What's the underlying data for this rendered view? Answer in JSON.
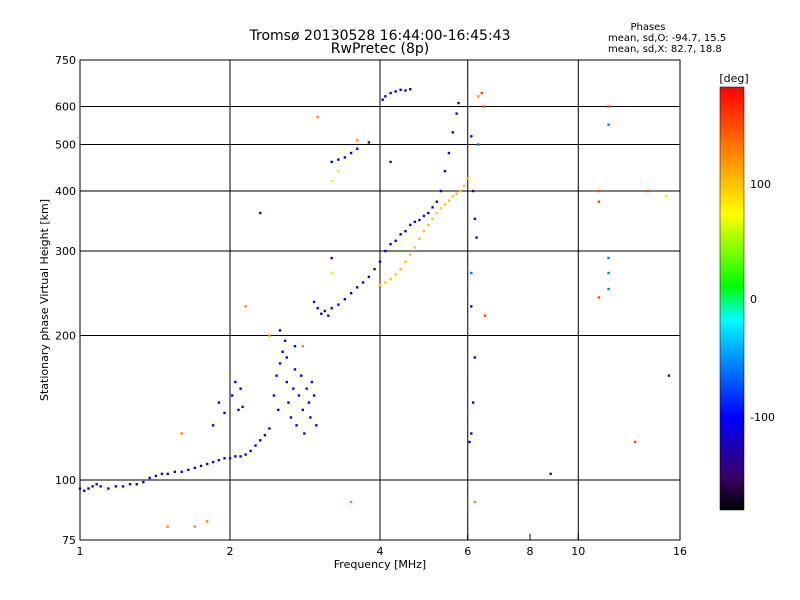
{
  "chart_data": {
    "type": "scatter",
    "title": "Tromsø 20130528 16:44:00-16:45:43",
    "subtitle": "RwPretec (8p)",
    "xlabel": "Frequency [MHz]",
    "ylabel": "Stationary phase Virtual Height [km]",
    "x_scale": "log",
    "y_scale": "log",
    "xlim": [
      1,
      16
    ],
    "ylim": [
      75,
      750
    ],
    "x_ticks": [
      "1",
      "2",
      "4",
      "6",
      "8",
      "10",
      "16"
    ],
    "y_ticks": [
      "750",
      "600",
      "500",
      "400",
      "300",
      "200",
      "100",
      "75"
    ],
    "grid_x": [
      2,
      4,
      6,
      10
    ],
    "grid_y": [
      100,
      200,
      300,
      400,
      500,
      600
    ],
    "stats": {
      "heading": "Phases",
      "line_o": "mean, sd,O: -94.7, 15.5",
      "line_x": "mean, sd,X: 82.7, 18.8"
    },
    "colorbar": {
      "label": "[deg]",
      "range": [
        -180,
        180
      ],
      "ticks": [
        "100",
        "0",
        "-100"
      ]
    },
    "series": [
      {
        "phase": -120,
        "points": [
          [
            1.0,
            96
          ],
          [
            1.02,
            95
          ],
          [
            1.04,
            96
          ],
          [
            1.06,
            97
          ],
          [
            1.08,
            98
          ],
          [
            1.1,
            97
          ],
          [
            1.14,
            96
          ],
          [
            1.18,
            97
          ],
          [
            1.22,
            97
          ],
          [
            1.26,
            98
          ],
          [
            1.3,
            98
          ],
          [
            1.34,
            99
          ],
          [
            1.38,
            101
          ],
          [
            1.42,
            102
          ],
          [
            1.46,
            103
          ],
          [
            1.5,
            103
          ],
          [
            1.55,
            104
          ],
          [
            1.6,
            104
          ],
          [
            1.65,
            105
          ],
          [
            1.7,
            106
          ],
          [
            1.75,
            107
          ],
          [
            1.8,
            108
          ],
          [
            1.85,
            109
          ],
          [
            1.9,
            110
          ],
          [
            1.95,
            111
          ],
          [
            2.0,
            111
          ],
          [
            2.05,
            112
          ],
          [
            2.1,
            112
          ],
          [
            2.15,
            113
          ],
          [
            2.2,
            115
          ],
          [
            2.25,
            118
          ],
          [
            2.3,
            121
          ],
          [
            2.35,
            124
          ],
          [
            2.4,
            128
          ]
        ]
      },
      {
        "phase": -110,
        "points": [
          [
            2.45,
            150
          ],
          [
            2.48,
            165
          ],
          [
            2.5,
            140
          ],
          [
            2.52,
            175
          ],
          [
            2.55,
            185
          ],
          [
            2.58,
            195
          ],
          [
            2.6,
            160
          ],
          [
            2.62,
            145
          ],
          [
            2.65,
            135
          ],
          [
            2.68,
            155
          ],
          [
            2.7,
            170
          ],
          [
            2.72,
            130
          ],
          [
            2.75,
            150
          ],
          [
            2.78,
            165
          ],
          [
            2.8,
            140
          ],
          [
            2.82,
            125
          ],
          [
            2.85,
            155
          ],
          [
            2.88,
            145
          ],
          [
            2.9,
            135
          ],
          [
            2.92,
            160
          ],
          [
            2.95,
            150
          ],
          [
            2.98,
            130
          ],
          [
            2.52,
            205
          ],
          [
            2.7,
            190
          ],
          [
            2.6,
            180
          ]
        ]
      },
      {
        "phase": -115,
        "points": [
          [
            1.85,
            130
          ],
          [
            1.9,
            145
          ],
          [
            1.95,
            138
          ],
          [
            2.02,
            150
          ],
          [
            2.05,
            160
          ],
          [
            2.08,
            140
          ],
          [
            2.1,
            155
          ],
          [
            2.12,
            142
          ]
        ]
      },
      {
        "phase": -120,
        "points": [
          [
            2.95,
            235
          ],
          [
            3.0,
            228
          ],
          [
            3.05,
            222
          ],
          [
            3.1,
            225
          ],
          [
            3.15,
            220
          ],
          [
            3.2,
            228
          ],
          [
            3.3,
            232
          ],
          [
            3.4,
            238
          ],
          [
            3.5,
            245
          ],
          [
            3.6,
            252
          ],
          [
            3.7,
            258
          ],
          [
            3.8,
            265
          ],
          [
            3.9,
            275
          ],
          [
            4.0,
            285
          ],
          [
            4.1,
            300
          ],
          [
            4.2,
            310
          ],
          [
            4.3,
            315
          ],
          [
            4.4,
            325
          ],
          [
            4.5,
            330
          ],
          [
            4.6,
            340
          ],
          [
            4.7,
            345
          ],
          [
            4.8,
            348
          ],
          [
            4.9,
            355
          ],
          [
            5.0,
            360
          ],
          [
            5.1,
            370
          ],
          [
            5.2,
            380
          ],
          [
            5.3,
            400
          ],
          [
            5.4,
            440
          ],
          [
            5.5,
            480
          ],
          [
            5.6,
            530
          ],
          [
            5.7,
            580
          ],
          [
            5.75,
            610
          ]
        ]
      },
      {
        "phase": -118,
        "points": [
          [
            4.05,
            620
          ],
          [
            4.1,
            630
          ],
          [
            4.2,
            640
          ],
          [
            4.3,
            645
          ],
          [
            4.4,
            650
          ],
          [
            4.5,
            648
          ],
          [
            4.6,
            652
          ]
        ]
      },
      {
        "phase": -112,
        "points": [
          [
            3.2,
            460
          ],
          [
            3.3,
            465
          ],
          [
            3.4,
            470
          ],
          [
            3.5,
            480
          ],
          [
            3.6,
            490
          ],
          [
            3.8,
            505
          ]
        ]
      },
      {
        "phase": 95,
        "points": [
          [
            4.0,
            255
          ],
          [
            4.1,
            258
          ],
          [
            4.2,
            262
          ],
          [
            4.3,
            268
          ],
          [
            4.4,
            275
          ],
          [
            4.5,
            285
          ],
          [
            4.6,
            295
          ],
          [
            4.7,
            305
          ],
          [
            4.8,
            318
          ],
          [
            4.9,
            330
          ],
          [
            5.0,
            340
          ],
          [
            5.1,
            350
          ],
          [
            5.2,
            360
          ],
          [
            5.3,
            368
          ],
          [
            5.4,
            375
          ],
          [
            5.5,
            382
          ],
          [
            5.6,
            390
          ],
          [
            5.7,
            395
          ],
          [
            5.8,
            400
          ],
          [
            5.9,
            410
          ],
          [
            6.0,
            425
          ]
        ]
      },
      {
        "phase": -125,
        "points": [
          [
            6.1,
            520
          ],
          [
            6.15,
            400
          ],
          [
            6.2,
            350
          ],
          [
            6.25,
            320
          ],
          [
            6.1,
            230
          ],
          [
            6.2,
            180
          ],
          [
            6.15,
            145
          ],
          [
            6.05,
            120
          ],
          [
            6.1,
            125
          ]
        ]
      },
      {
        "phase": 150,
        "points": [
          [
            6.4,
            640
          ],
          [
            6.45,
            600
          ],
          [
            11.5,
            600
          ],
          [
            6.5,
            220
          ],
          [
            11.0,
            400
          ],
          [
            11.0,
            380
          ],
          [
            13.8,
            400
          ],
          [
            11.0,
            240
          ],
          [
            13.0,
            120
          ]
        ]
      },
      {
        "phase": -60,
        "points": [
          [
            6.3,
            500
          ],
          [
            11.5,
            550
          ],
          [
            11.5,
            270
          ],
          [
            11.5,
            250
          ],
          [
            11.5,
            290
          ],
          [
            6.1,
            270
          ]
        ]
      },
      {
        "phase": 120,
        "points": [
          [
            3.0,
            570
          ],
          [
            3.6,
            510
          ],
          [
            2.15,
            230
          ],
          [
            2.4,
            200
          ],
          [
            2.8,
            190
          ],
          [
            1.6,
            125
          ],
          [
            1.7,
            80
          ],
          [
            1.8,
            82
          ],
          [
            1.5,
            80
          ],
          [
            3.5,
            90
          ],
          [
            6.2,
            90
          ],
          [
            6.3,
            630
          ]
        ]
      },
      {
        "phase": 60,
        "points": [
          [
            3.2,
            270
          ],
          [
            3.2,
            420
          ],
          [
            3.3,
            440
          ],
          [
            15.0,
            390
          ]
        ]
      },
      {
        "phase": -140,
        "points": [
          [
            8.8,
            103
          ],
          [
            15.2,
            165
          ],
          [
            2.3,
            360
          ],
          [
            4.2,
            460
          ],
          [
            3.2,
            290
          ]
        ]
      }
    ]
  }
}
